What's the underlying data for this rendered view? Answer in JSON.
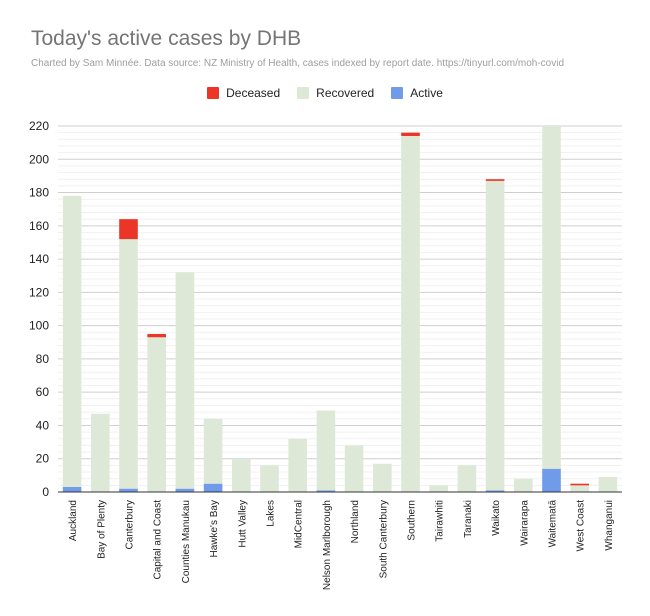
{
  "chart_data": {
    "type": "bar",
    "stacked": true,
    "title": "Today's active cases by DHB",
    "subtitle": "Charted by Sam Minnée. Data source: NZ Ministry of Health, cases indexed by report date. https://tinyurl.com/moh-covid",
    "xlabel": "",
    "ylabel": "",
    "ylim": [
      0,
      220
    ],
    "yticks": [
      0,
      20,
      40,
      60,
      80,
      100,
      120,
      140,
      160,
      180,
      200,
      220
    ],
    "legend_position": "top-center",
    "legend_order": [
      "Deceased",
      "Recovered",
      "Active"
    ],
    "categories": [
      "Auckland",
      "Bay of Plenty",
      "Canterbury",
      "Capital and Coast",
      "Counties Manukau",
      "Hawke's Bay",
      "Hutt Valley",
      "Lakes",
      "MidCentral",
      "Nelson Marlborough",
      "Northland",
      "South Canterbury",
      "Southern",
      "Tairawhiti",
      "Taranaki",
      "Waikato",
      "Wairarapa",
      "Waitematā",
      "West Coast",
      "Whanganui"
    ],
    "series": [
      {
        "name": "Active",
        "color": "#6f9be8",
        "values": [
          3,
          0,
          2,
          0,
          2,
          5,
          0,
          0,
          0,
          1,
          0,
          0,
          0,
          0,
          0,
          1,
          0,
          14,
          0,
          0
        ]
      },
      {
        "name": "Recovered",
        "color": "#dde8d6",
        "values": [
          175,
          47,
          150,
          93,
          130,
          39,
          20,
          16,
          32,
          48,
          28,
          17,
          214,
          4,
          16,
          186,
          8,
          206,
          4,
          9
        ]
      },
      {
        "name": "Deceased",
        "color": "#ea3527",
        "values": [
          0,
          0,
          12,
          2,
          0,
          0,
          0,
          0,
          0,
          0,
          0,
          0,
          2,
          0,
          0,
          1,
          0,
          0,
          1,
          0
        ]
      }
    ]
  }
}
